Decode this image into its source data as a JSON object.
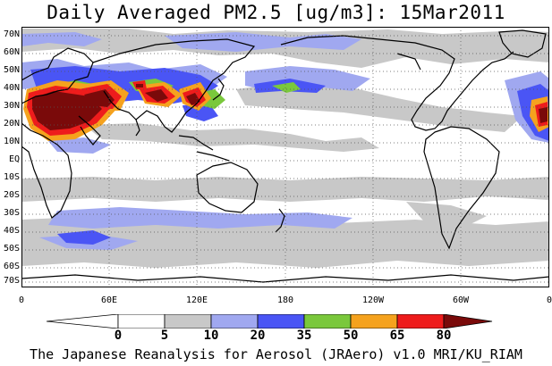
{
  "title": "Daily Averaged PM2.5 [ug/m3]: 15Mar2011",
  "credit": "The Japanese Reanalysis for Aerosol (JRAero) v1.0 MRI/KU_RIAM",
  "lat_labels": [
    "70N",
    "60N",
    "50N",
    "40N",
    "30N",
    "20N",
    "10N",
    "EQ",
    "10S",
    "20S",
    "30S",
    "40S",
    "50S",
    "60S",
    "70S"
  ],
  "lon_labels": [
    "0",
    "60E",
    "120E",
    "180",
    "120W",
    "60W",
    "0"
  ],
  "colorbar": {
    "labels": [
      "0",
      "5",
      "10",
      "20",
      "35",
      "50",
      "65",
      "80"
    ],
    "colors": [
      "#ffffff",
      "#c8c8c8",
      "#a0a8f0",
      "#4a55f5",
      "#7ac83c",
      "#f5a21e",
      "#ee1c1c",
      "#7a0a0a"
    ]
  },
  "legend_colors": {
    "gray": "#c8c8c8",
    "light_blue": "#a0a8f0",
    "blue": "#4a55f5",
    "green": "#7ac83c",
    "orange": "#f5a21e",
    "red": "#ee1c1c",
    "dark_red": "#7a0a0a"
  }
}
